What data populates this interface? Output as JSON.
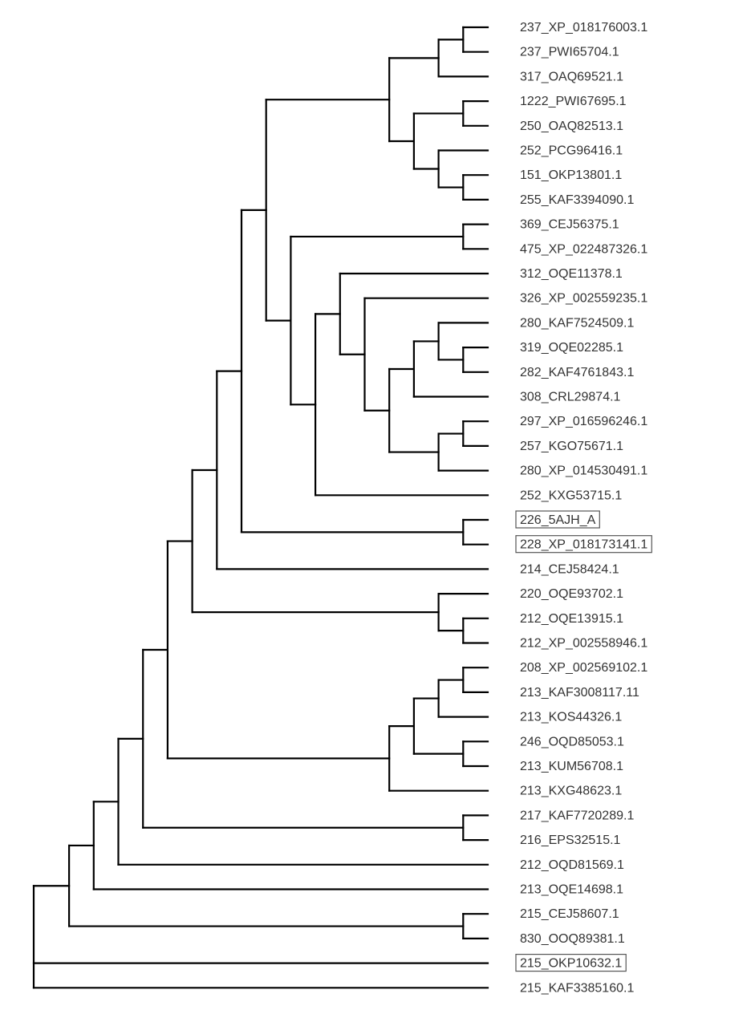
{
  "tree": {
    "leaves": [
      {
        "id": "L0",
        "label": "237_XP_018176003.1",
        "highlighted": false
      },
      {
        "id": "L1",
        "label": "237_PWI65704.1",
        "highlighted": false
      },
      {
        "id": "L2",
        "label": "317_OAQ69521.1",
        "highlighted": false
      },
      {
        "id": "L3",
        "label": "1222_PWI67695.1",
        "highlighted": false
      },
      {
        "id": "L4",
        "label": "250_OAQ82513.1",
        "highlighted": false
      },
      {
        "id": "L5",
        "label": "252_PCG96416.1",
        "highlighted": false
      },
      {
        "id": "L6",
        "label": "151_OKP13801.1",
        "highlighted": false
      },
      {
        "id": "L7",
        "label": "255_KAF3394090.1",
        "highlighted": false
      },
      {
        "id": "L8",
        "label": "369_CEJ56375.1",
        "highlighted": false
      },
      {
        "id": "L9",
        "label": "475_XP_022487326.1",
        "highlighted": false
      },
      {
        "id": "L10",
        "label": "312_OQE11378.1",
        "highlighted": false
      },
      {
        "id": "L11",
        "label": "326_XP_002559235.1",
        "highlighted": false
      },
      {
        "id": "L12",
        "label": "280_KAF7524509.1",
        "highlighted": false
      },
      {
        "id": "L13",
        "label": "319_OQE02285.1",
        "highlighted": false
      },
      {
        "id": "L14",
        "label": "282_KAF4761843.1",
        "highlighted": false
      },
      {
        "id": "L15",
        "label": "308_CRL29874.1",
        "highlighted": false
      },
      {
        "id": "L16",
        "label": "297_XP_016596246.1",
        "highlighted": false
      },
      {
        "id": "L17",
        "label": "257_KGO75671.1",
        "highlighted": false
      },
      {
        "id": "L18",
        "label": "280_XP_014530491.1",
        "highlighted": false
      },
      {
        "id": "L19",
        "label": "252_KXG53715.1",
        "highlighted": false
      },
      {
        "id": "L20",
        "label": "226_5AJH_A",
        "highlighted": true
      },
      {
        "id": "L21",
        "label": "228_XP_018173141.1",
        "highlighted": true
      },
      {
        "id": "L22",
        "label": "214_CEJ58424.1",
        "highlighted": false
      },
      {
        "id": "L23",
        "label": "220_OQE93702.1",
        "highlighted": false
      },
      {
        "id": "L24",
        "label": "212_OQE13915.1",
        "highlighted": false
      },
      {
        "id": "L25",
        "label": "212_XP_002558946.1",
        "highlighted": false
      },
      {
        "id": "L26",
        "label": "208_XP_002569102.1",
        "highlighted": false
      },
      {
        "id": "L27",
        "label": "213_KAF3008117.11",
        "highlighted": false
      },
      {
        "id": "L28",
        "label": "213_KOS44326.1",
        "highlighted": false
      },
      {
        "id": "L29",
        "label": "246_OQD85053.1",
        "highlighted": false
      },
      {
        "id": "L30",
        "label": "213_KUM56708.1",
        "highlighted": false
      },
      {
        "id": "L31",
        "label": "213_KXG48623.1",
        "highlighted": false
      },
      {
        "id": "L32",
        "label": "217_KAF7720289.1",
        "highlighted": false
      },
      {
        "id": "L33",
        "label": "216_EPS32515.1",
        "highlighted": false
      },
      {
        "id": "L34",
        "label": "212_OQD81569.1",
        "highlighted": false
      },
      {
        "id": "L35",
        "label": "213_OQE14698.1",
        "highlighted": false
      },
      {
        "id": "L36",
        "label": "215_CEJ58607.1",
        "highlighted": false
      },
      {
        "id": "L37",
        "label": "830_OOQ89381.1",
        "highlighted": false
      },
      {
        "id": "L38",
        "label": "215_OKP10632.1",
        "highlighted": true
      },
      {
        "id": "L39",
        "label": "215_KAF3385160.1",
        "highlighted": false
      }
    ],
    "topology": {
      "children": [
        {
          "children": [
            {
              "children": [
                {
                  "children": [
                    {
                      "children": [
                        {
                          "children": [
                            {
                              "children": [
                                {
                                  "children": [
                                    {
                                      "children": [
                                        {
                                          "children": [
                                            {
                                              "children": [
                                                {
                                                  "children": [
                                                    "L0",
                                                    "L1"
                                                  ]
                                                },
                                                "L2"
                                              ]
                                            },
                                            {
                                              "children": [
                                                {
                                                  "children": [
                                                    "L3",
                                                    "L4"
                                                  ]
                                                },
                                                {
                                                  "children": [
                                                    "L5",
                                                    {
                                                      "children": [
                                                        "L6",
                                                        "L7"
                                                      ]
                                                    }
                                                  ]
                                                }
                                              ]
                                            }
                                          ]
                                        },
                                        {
                                          "children": [
                                            {
                                              "children": [
                                                "L8",
                                                "L9"
                                              ]
                                            },
                                            {
                                              "children": [
                                                {
                                                  "children": [
                                                    "L10",
                                                    {
                                                      "children": [
                                                        "L11",
                                                        {
                                                          "children": [
                                                            {
                                                              "children": [
                                                                {
                                                                  "children": [
                                                                    "L12",
                                                                    {
                                                                      "children": [
                                                                        "L13",
                                                                        "L14"
                                                                      ]
                                                                    }
                                                                  ]
                                                                },
                                                                "L15"
                                                              ]
                                                            },
                                                            {
                                                              "children": [
                                                                {
                                                                  "children": [
                                                                    "L16",
                                                                    "L17"
                                                                  ]
                                                                },
                                                                "L18"
                                                              ]
                                                            }
                                                          ]
                                                        }
                                                      ]
                                                    }
                                                  ]
                                                },
                                                "L19"
                                              ]
                                            }
                                          ]
                                        }
                                      ]
                                    },
                                    {
                                      "children": [
                                        "L20",
                                        "L21"
                                      ]
                                    }
                                  ]
                                },
                                "L22"
                              ]
                            },
                            {
                              "children": [
                                "L23",
                                {
                                  "children": [
                                    "L24",
                                    "L25"
                                  ]
                                }
                              ]
                            }
                          ]
                        },
                        {
                          "children": [
                            {
                              "children": [
                                {
                                  "children": [
                                    {
                                      "children": [
                                        "L26",
                                        "L27"
                                      ]
                                    },
                                    "L28"
                                  ]
                                },
                                {
                                  "children": [
                                    "L29",
                                    "L30"
                                  ]
                                }
                              ]
                            },
                            "L31"
                          ]
                        }
                      ]
                    },
                    {
                      "children": [
                        "L32",
                        "L33"
                      ]
                    }
                  ]
                },
                "L34"
              ]
            },
            "L35"
          ]
        },
        {
          "children": [
            "L36",
            "L37"
          ]
        }
      ]
    },
    "outgroup_leaves": [
      "L38",
      "L39"
    ]
  }
}
